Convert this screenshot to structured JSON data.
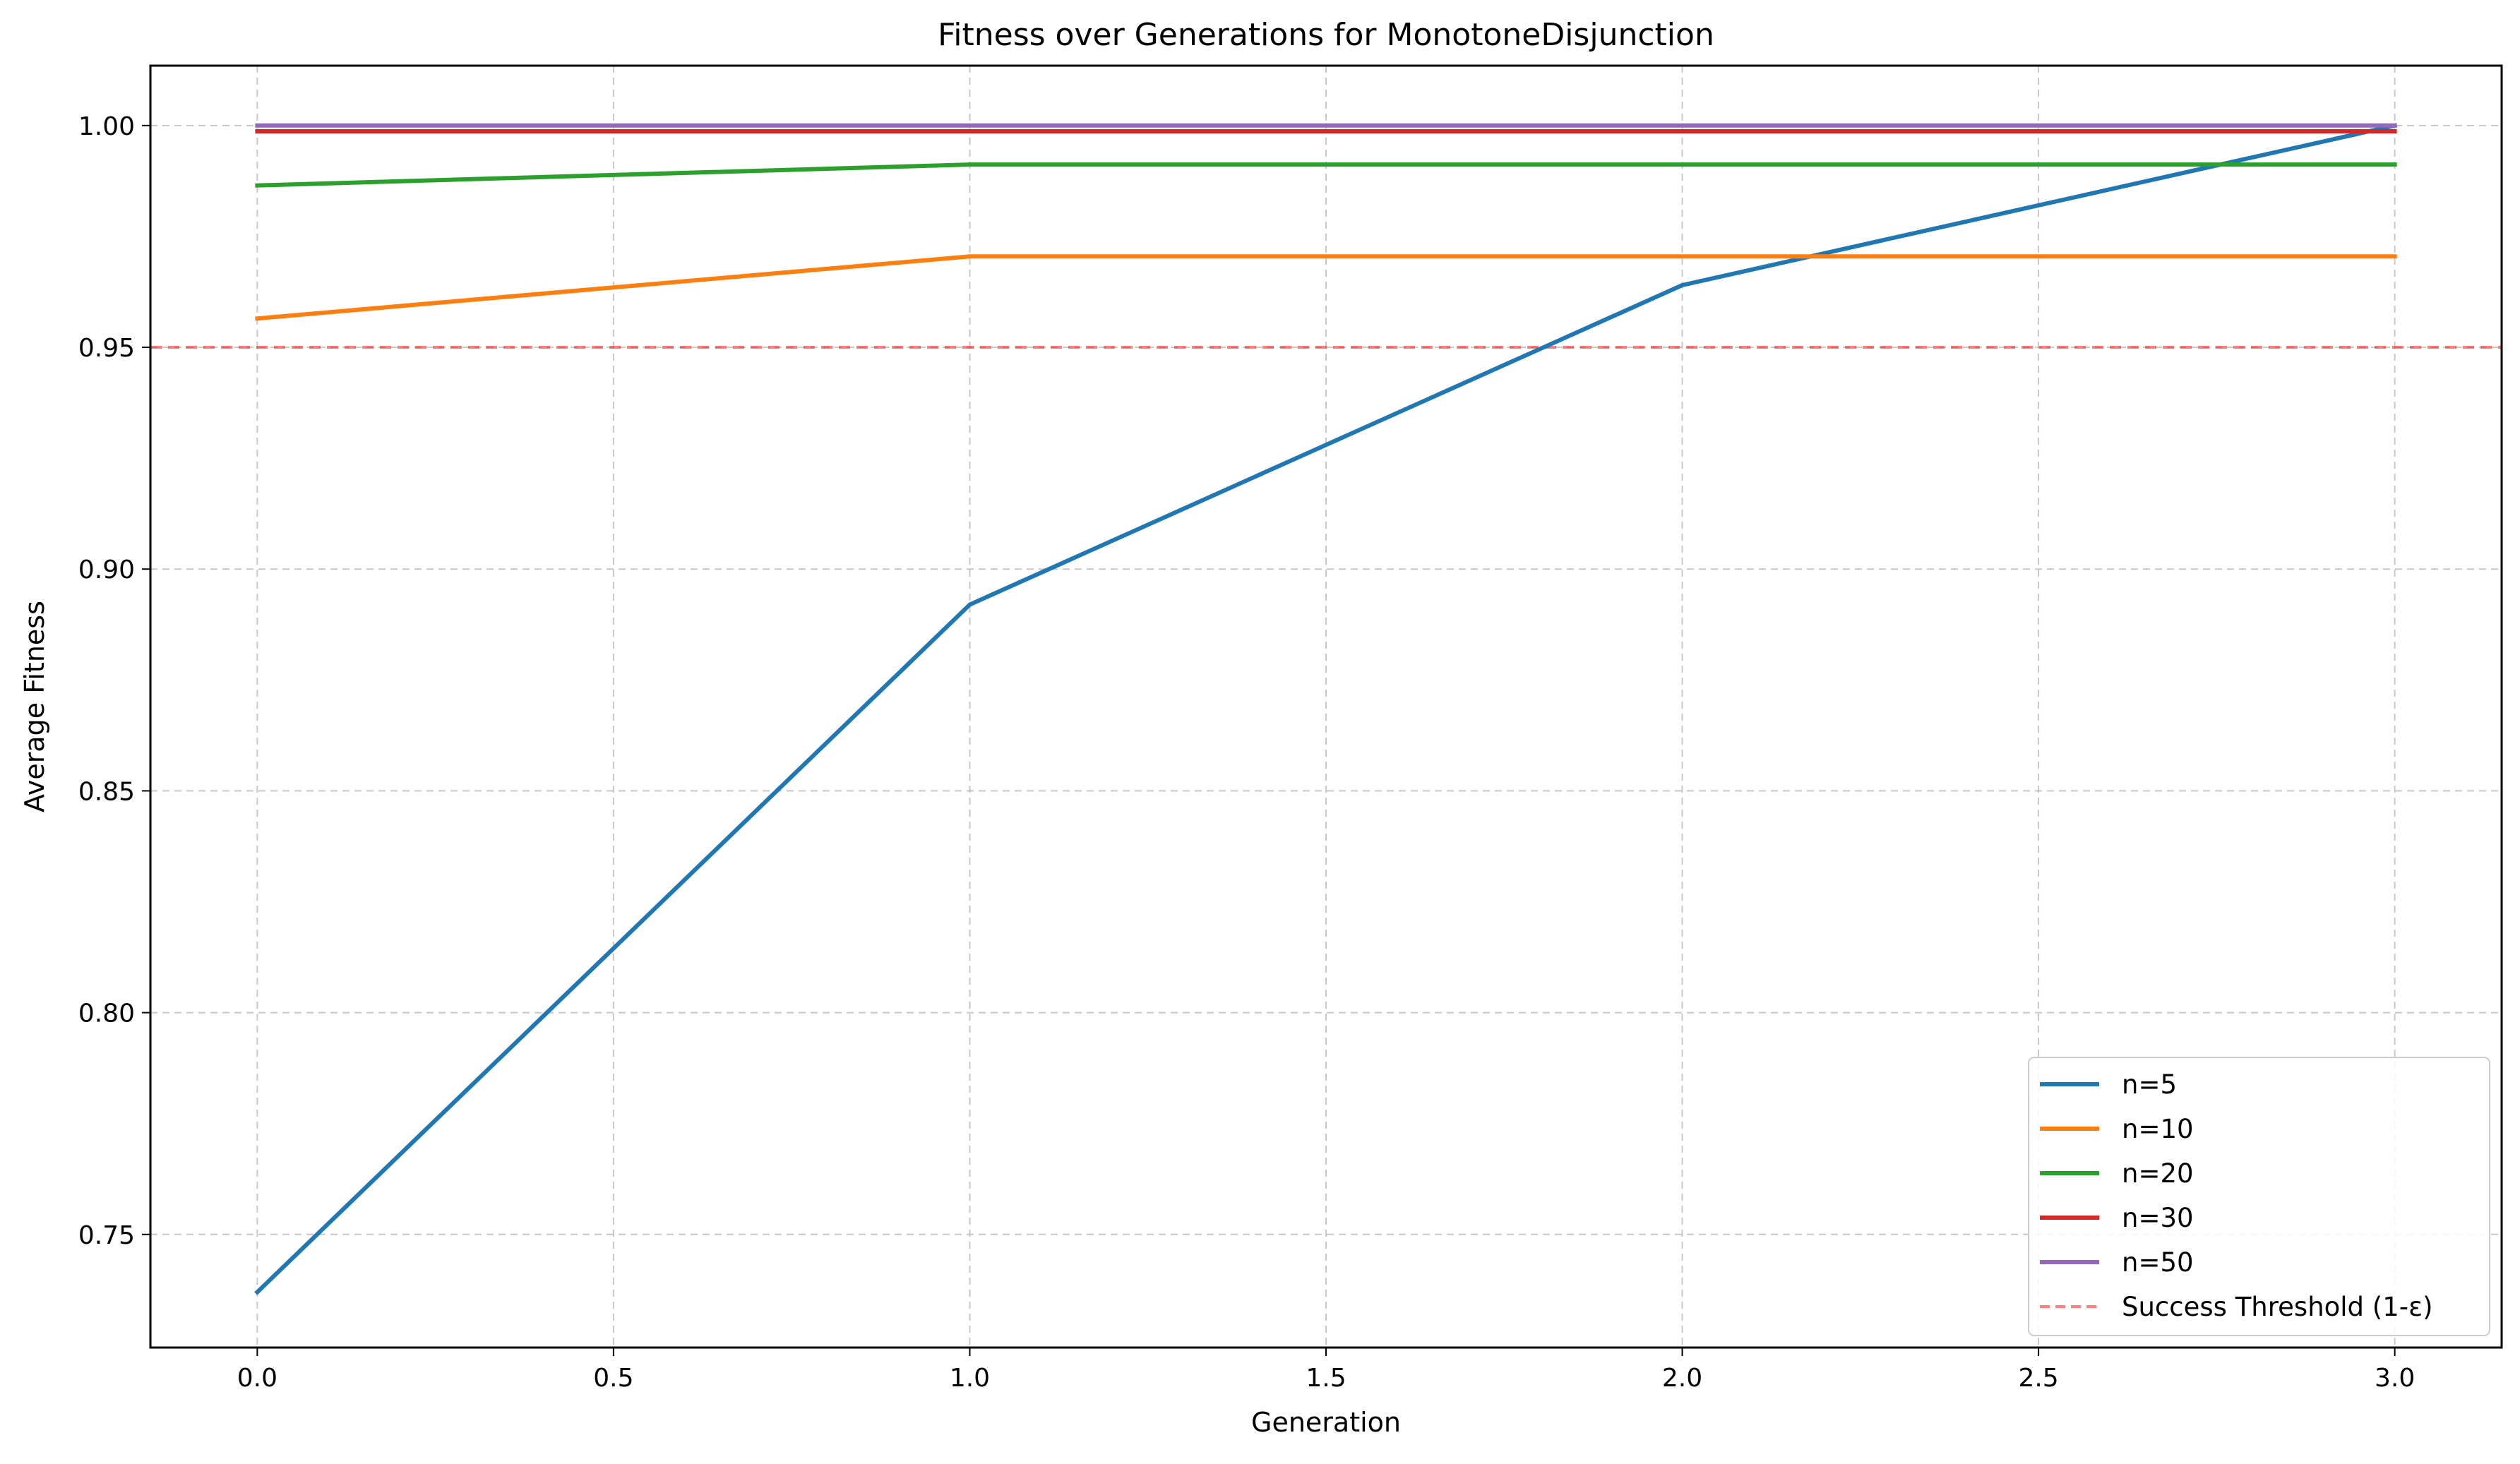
{
  "chart_data": {
    "type": "line",
    "title": "Fitness over Generations for MonotoneDisjunction",
    "xlabel": "Generation",
    "ylabel": "Average Fitness",
    "xlim": [
      -0.15,
      3.15
    ],
    "ylim": [
      0.7245,
      1.0135
    ],
    "x": [
      0,
      1,
      2,
      3
    ],
    "xticks": [
      0.0,
      0.5,
      1.0,
      1.5,
      2.0,
      2.5,
      3.0
    ],
    "xtick_labels": [
      "0.0",
      "0.5",
      "1.0",
      "1.5",
      "2.0",
      "2.5",
      "3.0"
    ],
    "yticks": [
      0.75,
      0.8,
      0.85,
      0.9,
      0.95,
      1.0
    ],
    "ytick_labels": [
      "0.75",
      "0.80",
      "0.85",
      "0.90",
      "0.95",
      "1.00"
    ],
    "grid": true,
    "legend_position": "bottom-right",
    "series": [
      {
        "name": "n=5",
        "color": "#1f77b4",
        "values": [
          0.737,
          0.892,
          0.964,
          1.0
        ]
      },
      {
        "name": "n=10",
        "color": "#ff7f0e",
        "values": [
          0.9565,
          0.9705,
          0.9705,
          0.9705
        ]
      },
      {
        "name": "n=20",
        "color": "#2ca02c",
        "values": [
          0.9865,
          0.9912,
          0.9912,
          0.9912
        ]
      },
      {
        "name": "n=30",
        "color": "#d62728",
        "values": [
          0.9987,
          0.9987,
          0.9987,
          0.9987
        ]
      },
      {
        "name": "n=50",
        "color": "#9467bd",
        "values": [
          1.0,
          1.0,
          1.0,
          1.0
        ]
      }
    ],
    "threshold": {
      "name": "Success Threshold (1-ε)",
      "value": 0.95,
      "color": "#ff0000",
      "style": "dashed"
    }
  }
}
